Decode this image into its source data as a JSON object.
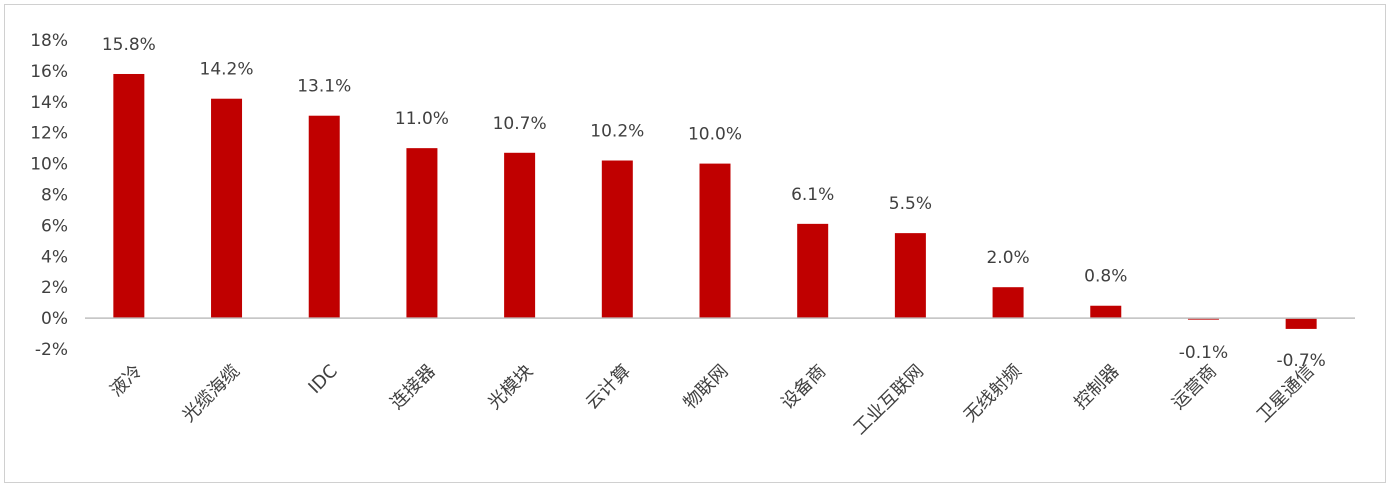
{
  "chart_data": {
    "type": "bar",
    "categories": [
      "液冷",
      "光缆海缆",
      "IDC",
      "连接器",
      "光模块",
      "云计算",
      "物联网",
      "设备商",
      "工业互联网",
      "无线射频",
      "控制器",
      "运营商",
      "卫星通信"
    ],
    "values": [
      15.8,
      14.2,
      13.1,
      11.0,
      10.7,
      10.2,
      10.0,
      6.1,
      5.5,
      2.0,
      0.8,
      -0.1,
      -0.7
    ],
    "data_labels": [
      "15.8%",
      "14.2%",
      "13.1%",
      "11.0%",
      "10.7%",
      "10.2%",
      "10.0%",
      "6.1%",
      "5.5%",
      "2.0%",
      "0.8%",
      "-0.1%",
      "-0.7%"
    ],
    "y_ticks": [
      18,
      16,
      14,
      12,
      10,
      8,
      6,
      4,
      2,
      0,
      -2
    ],
    "y_tick_labels": [
      "18%",
      "16%",
      "14%",
      "12%",
      "10%",
      "8%",
      "6%",
      "4%",
      "2%",
      "0%",
      "-2%"
    ],
    "ylim": [
      -2,
      18
    ],
    "grid": false,
    "legend": "none",
    "bar_color": "#C00000",
    "axis_color": "#bfbfbf",
    "text_color": "#404040",
    "title": "",
    "xlabel": "",
    "ylabel": ""
  }
}
